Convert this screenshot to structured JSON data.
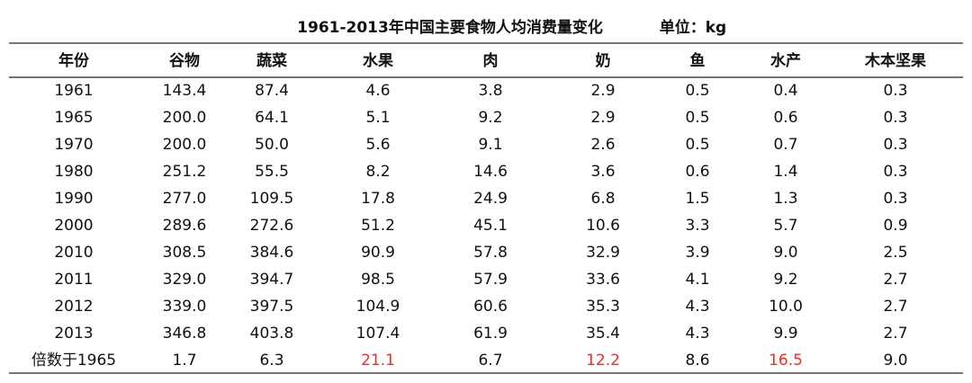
{
  "header": {
    "title": "1961-2013年中国主要食物人均消费量变化",
    "unit": "单位：kg"
  },
  "table": {
    "columns": [
      "年份",
      "谷物",
      "蔬菜",
      "水果",
      "肉",
      "奶",
      "鱼",
      "水产",
      "木本坚果"
    ],
    "rows": [
      [
        "1961",
        "143.4",
        "87.4",
        "4.6",
        "3.8",
        "2.9",
        "0.5",
        "0.4",
        "0.3"
      ],
      [
        "1965",
        "200.0",
        "64.1",
        "5.1",
        "9.2",
        "2.9",
        "0.5",
        "0.6",
        "0.3"
      ],
      [
        "1970",
        "200.0",
        "50.0",
        "5.6",
        "9.1",
        "2.6",
        "0.5",
        "0.7",
        "0.3"
      ],
      [
        "1980",
        "251.2",
        "55.5",
        "8.2",
        "14.6",
        "3.6",
        "0.6",
        "1.4",
        "0.3"
      ],
      [
        "1990",
        "277.0",
        "109.5",
        "17.8",
        "24.9",
        "6.8",
        "1.5",
        "1.3",
        "0.3"
      ],
      [
        "2000",
        "289.6",
        "272.6",
        "51.2",
        "45.1",
        "10.6",
        "3.3",
        "5.7",
        "0.9"
      ],
      [
        "2010",
        "308.5",
        "384.6",
        "90.9",
        "57.8",
        "32.9",
        "3.9",
        "9.0",
        "2.5"
      ],
      [
        "2011",
        "329.0",
        "394.7",
        "98.5",
        "57.9",
        "33.6",
        "4.1",
        "9.2",
        "2.7"
      ],
      [
        "2012",
        "339.0",
        "397.5",
        "104.9",
        "60.6",
        "35.3",
        "4.3",
        "10.0",
        "2.7"
      ],
      [
        "2013",
        "346.8",
        "403.8",
        "107.4",
        "61.9",
        "35.4",
        "4.3",
        "9.9",
        "2.7"
      ],
      [
        "倍数于1965",
        "1.7",
        "6.3",
        "21.1",
        "6.7",
        "12.2",
        "8.6",
        "16.5",
        "9.0"
      ]
    ],
    "highlight_row": 10,
    "highlight_columns": [
      3,
      5,
      7
    ],
    "highlight_color": "#e8312b"
  }
}
